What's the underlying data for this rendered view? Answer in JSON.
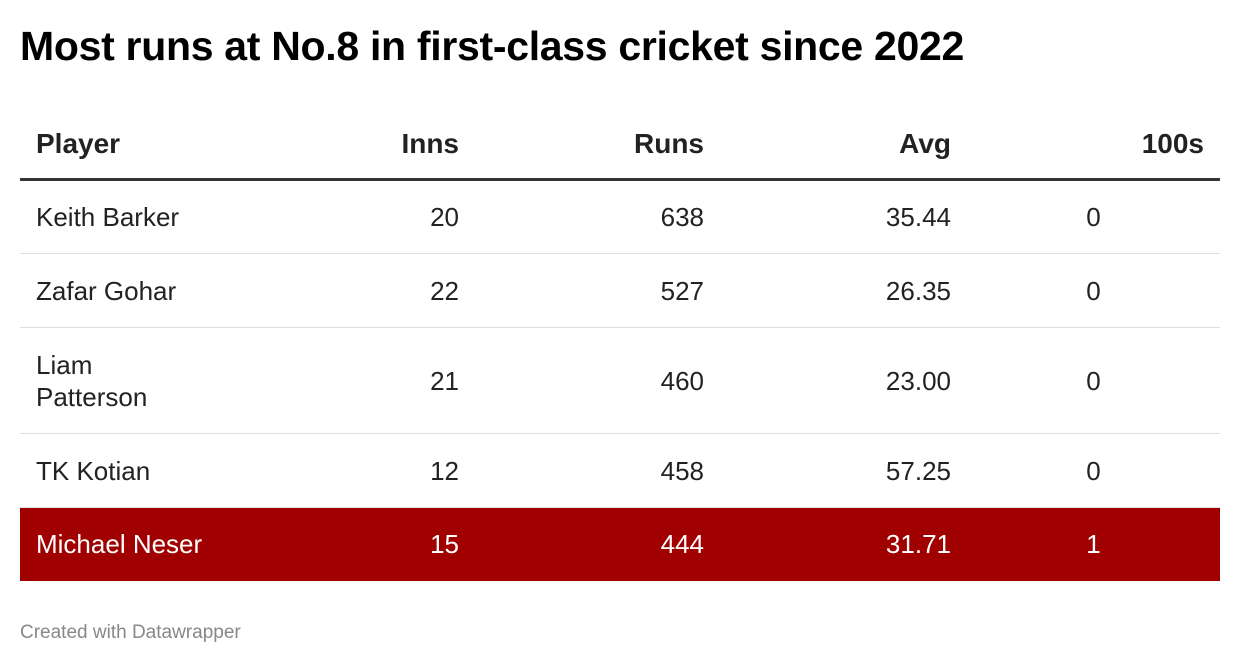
{
  "title": "Most runs at No.8 in first-class cricket since 2022",
  "footer": "Created with Datawrapper",
  "colors": {
    "highlight_row": "#a00000",
    "highlight_text": "#ffffff",
    "header_rule": "#333333",
    "row_rule": "#dddddd"
  },
  "chart_data": {
    "type": "table",
    "columns": [
      "Player",
      "Inns",
      "Runs",
      "Avg",
      "100s"
    ],
    "rows": [
      {
        "player": "Keith Barker",
        "inns": "20",
        "runs": "638",
        "avg": "35.44",
        "hundreds": "0"
      },
      {
        "player": "Zafar Gohar",
        "inns": "22",
        "runs": "527",
        "avg": "26.35",
        "hundreds": "0"
      },
      {
        "player": "Liam Patterson",
        "inns": "21",
        "runs": "460",
        "avg": "23.00",
        "hundreds": "0"
      },
      {
        "player": "TK Kotian",
        "inns": "12",
        "runs": "458",
        "avg": "57.25",
        "hundreds": "0"
      },
      {
        "player": "Michael Neser",
        "inns": "15",
        "runs": "444",
        "avg": "31.71",
        "hundreds": "1",
        "highlighted": true
      }
    ]
  }
}
